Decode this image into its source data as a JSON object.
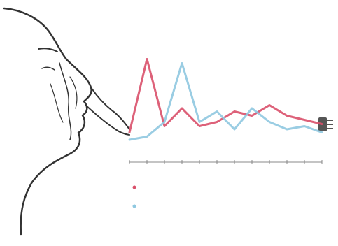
{
  "chart_data": {
    "type": "line",
    "categories": [
      null,
      null,
      null,
      null,
      null,
      null,
      null,
      null,
      null,
      null,
      null,
      null
    ],
    "series": [
      {
        "color": "#d9506a",
        "values": [
          27,
          97,
          33,
          50,
          33,
          37,
          47,
          43,
          53,
          43,
          39,
          35
        ]
      },
      {
        "color": "#8fc8e0",
        "values": [
          20,
          23,
          37,
          93,
          37,
          47,
          30,
          50,
          37,
          30,
          33,
          27
        ]
      }
    ],
    "ylim": [
      0,
      100
    ]
  }
}
